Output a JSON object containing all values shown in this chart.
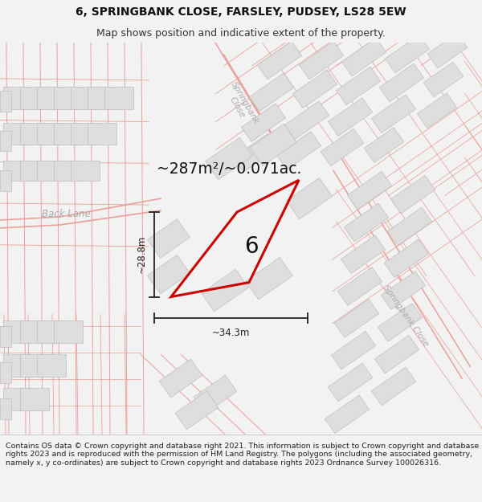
{
  "title": "6, SPRINGBANK CLOSE, FARSLEY, PUDSEY, LS28 5EW",
  "subtitle": "Map shows position and indicative extent of the property.",
  "footer": "Contains OS data © Crown copyright and database right 2021. This information is subject to Crown copyright and database rights 2023 and is reproduced with the permission of HM Land Registry. The polygons (including the associated geometry, namely x, y co-ordinates) are subject to Crown copyright and database rights 2023 Ordnance Survey 100026316.",
  "area_label": "~287m²/~0.071ac.",
  "number_label": "6",
  "dim_vertical": "~28.8m",
  "dim_horizontal": "~34.3m",
  "road_label_backlane": "Back Lane",
  "road_label_springbank_top": "Springbank\nClose",
  "road_label_springbank_right": "Springbank Close",
  "bg_color": "#f2f2f2",
  "map_bg": "#ffffff",
  "building_color": "#dedede",
  "building_outline": "#c0bebb",
  "road_line_color": "#e8a09a",
  "property_color": "#cc0000",
  "title_fontsize": 10,
  "subtitle_fontsize": 9,
  "footer_fontsize": 6.8,
  "road_label_color": "#aaaaaa",
  "dim_color": "#222222"
}
